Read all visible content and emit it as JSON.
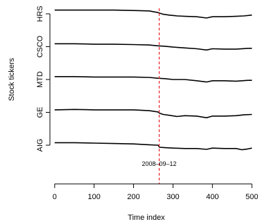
{
  "chart_data": {
    "type": "line",
    "xlabel": "Time index",
    "ylabel": "Stock tickers",
    "xlim": [
      -12,
      512
    ],
    "xticks": [
      0,
      100,
      200,
      300,
      400,
      500
    ],
    "categories": [
      "AIG",
      "GE",
      "MTD",
      "CSCO",
      "HRS"
    ],
    "event": {
      "x": 265,
      "label": "2008–09–12",
      "color": "#e8202a",
      "linestyle": "dashed"
    },
    "series_color": "#000000",
    "grid": false,
    "legend": "none",
    "series": [
      {
        "ticker": "AIG",
        "x": [
          0,
          50,
          100,
          150,
          200,
          240,
          262,
          266,
          280,
          300,
          330,
          360,
          385,
          400,
          430,
          460,
          475,
          490,
          500
        ],
        "y": [
          0.3,
          0.3,
          0.25,
          0.2,
          0.15,
          0.05,
          0.0,
          -0.25,
          -0.3,
          -0.35,
          -0.4,
          -0.4,
          -0.5,
          -0.35,
          -0.4,
          -0.4,
          -0.55,
          -0.45,
          -0.35
        ]
      },
      {
        "ticker": "GE",
        "x": [
          0,
          50,
          100,
          150,
          200,
          240,
          262,
          266,
          275,
          290,
          310,
          330,
          360,
          385,
          400,
          430,
          460,
          480,
          500
        ],
        "y": [
          0.3,
          0.35,
          0.3,
          0.3,
          0.3,
          0.2,
          0.05,
          -0.1,
          -0.25,
          -0.35,
          -0.5,
          -0.4,
          -0.45,
          -0.65,
          -0.45,
          -0.45,
          -0.4,
          -0.3,
          -0.25
        ]
      },
      {
        "ticker": "MTD",
        "x": [
          0,
          50,
          100,
          150,
          200,
          240,
          262,
          280,
          300,
          330,
          360,
          385,
          400,
          430,
          460,
          490,
          500
        ],
        "y": [
          0.35,
          0.35,
          0.3,
          0.3,
          0.3,
          0.25,
          0.15,
          0.1,
          0.0,
          0.0,
          -0.15,
          -0.3,
          -0.15,
          -0.15,
          -0.2,
          -0.1,
          -0.1
        ]
      },
      {
        "ticker": "CSCO",
        "x": [
          0,
          50,
          100,
          150,
          200,
          240,
          262,
          280,
          300,
          330,
          360,
          385,
          400,
          430,
          460,
          490,
          500
        ],
        "y": [
          0.35,
          0.35,
          0.3,
          0.3,
          0.25,
          0.2,
          0.1,
          0.05,
          -0.05,
          -0.15,
          -0.25,
          -0.4,
          -0.25,
          -0.3,
          -0.3,
          -0.2,
          -0.2
        ]
      },
      {
        "ticker": "HRS",
        "x": [
          0,
          50,
          100,
          150,
          200,
          240,
          262,
          275,
          290,
          310,
          330,
          360,
          385,
          400,
          430,
          460,
          480,
          500
        ],
        "y": [
          0.45,
          0.45,
          0.45,
          0.45,
          0.4,
          0.35,
          0.15,
          -0.05,
          -0.15,
          -0.25,
          -0.3,
          -0.35,
          -0.5,
          -0.35,
          -0.35,
          -0.3,
          -0.25,
          -0.15
        ]
      }
    ]
  }
}
